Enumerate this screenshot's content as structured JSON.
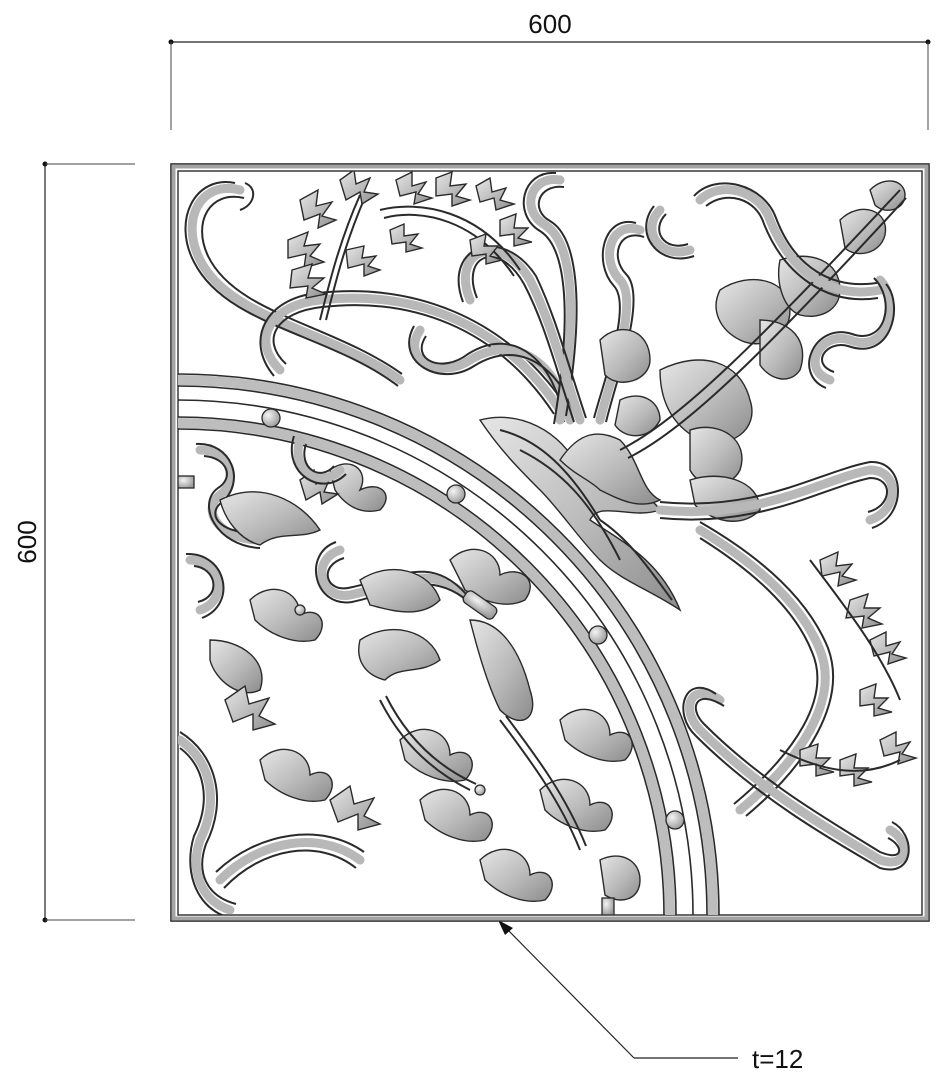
{
  "dimensions": {
    "width_label": "600",
    "height_label": "600",
    "thickness_label": "t=12"
  },
  "panel": {
    "shape": "square",
    "motif": "floral-scroll-ornament",
    "colors": {
      "frame": "#9e9e9e",
      "outline": "#2a2a2a",
      "metal_light": "#e6e6e6",
      "metal_dark": "#8c8c8c"
    }
  }
}
